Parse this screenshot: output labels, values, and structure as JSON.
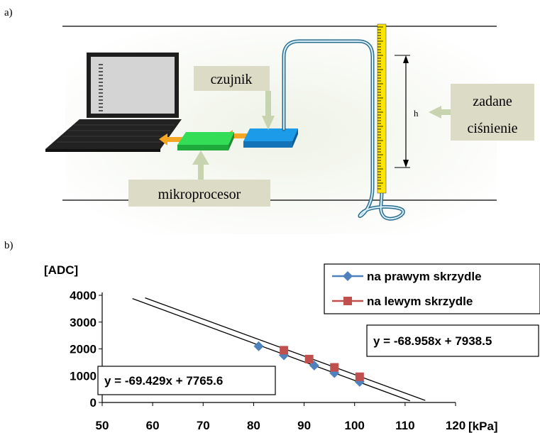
{
  "figure_a": {
    "panel_label": "a)",
    "labels": {
      "sensor": "czujnik",
      "microprocessor": "mikroprocesor",
      "pressure_line1": "zadane",
      "pressure_line2": "ciśnienie",
      "height": "h"
    }
  },
  "figure_b": {
    "panel_label": "b)"
  },
  "chart_data": {
    "type": "scatter",
    "ylabel": "[ADC]",
    "xlabel": "[kPa]",
    "xlim": [
      50,
      120
    ],
    "ylim": [
      0,
      4000
    ],
    "x_ticks": [
      "50",
      "60",
      "70",
      "80",
      "90",
      "100",
      "110",
      "120"
    ],
    "y_ticks": [
      "0",
      "1000",
      "2000",
      "3000",
      "4000"
    ],
    "grid": false,
    "legend_position": "top-right",
    "series": [
      {
        "name": "na prawym skrzydle",
        "color": "#4f81bd",
        "marker": "diamond",
        "points": [
          [
            81,
            2100
          ],
          [
            86,
            1760
          ],
          [
            92,
            1380
          ],
          [
            96,
            1100
          ],
          [
            101,
            770
          ]
        ],
        "fit": {
          "slope": -69.429,
          "intercept": 7765.6,
          "x_range": [
            56,
            111
          ],
          "label": "y = -69.429x + 7765.6"
        }
      },
      {
        "name": "na lewym skrzydle",
        "color": "#c0504d",
        "marker": "square",
        "points": [
          [
            86,
            1950
          ],
          [
            91,
            1620
          ],
          [
            96,
            1310
          ],
          [
            101,
            960
          ]
        ],
        "fit": {
          "slope": -68.958,
          "intercept": 7938.5,
          "x_range": [
            58.5,
            114
          ],
          "label": "y = -68.958x + 7938.5"
        }
      }
    ]
  }
}
